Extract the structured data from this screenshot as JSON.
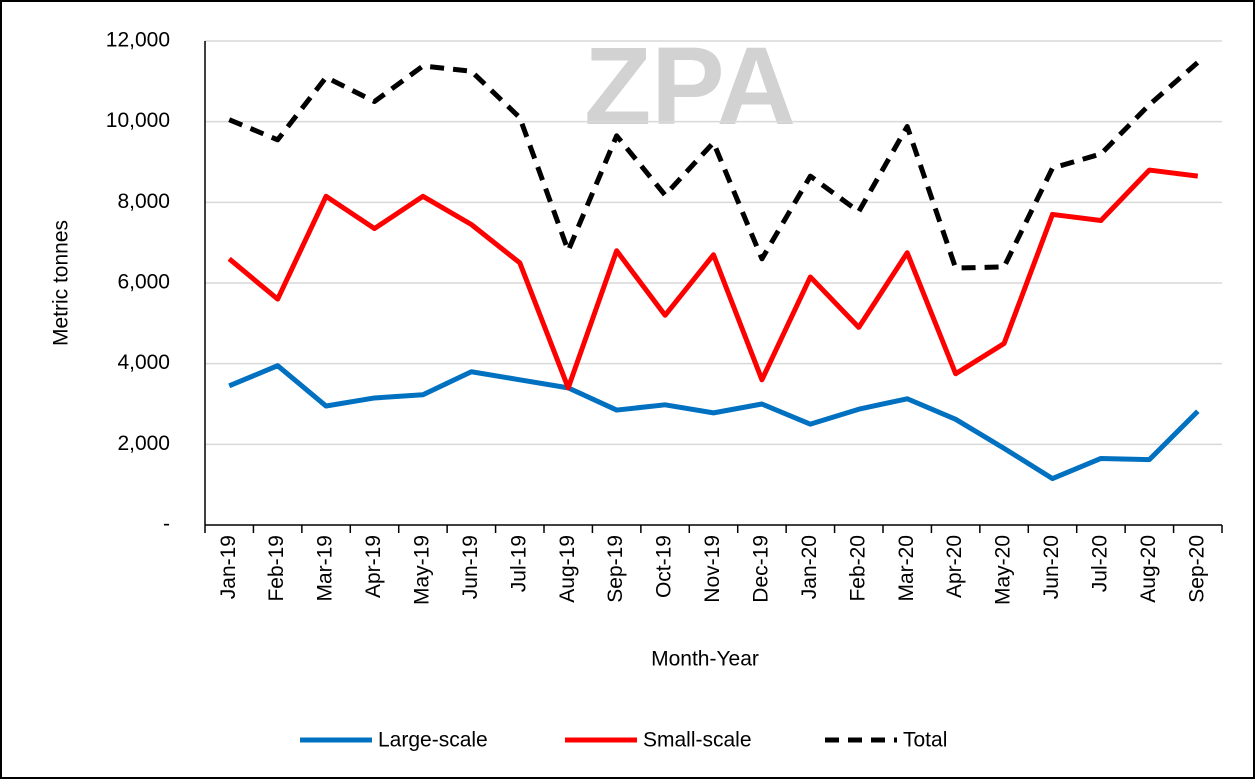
{
  "chart_data": {
    "type": "line",
    "watermark": "ZPA",
    "x_label": "Month-Year",
    "y_label": "Metric tonnes",
    "categories": [
      "Jan-19",
      "Feb-19",
      "Mar-19",
      "Apr-19",
      "May-19",
      "Jun-19",
      "Jul-19",
      "Aug-19",
      "Sep-19",
      "Oct-19",
      "Nov-19",
      "Dec-19",
      "Jan-20",
      "Feb-20",
      "Mar-20",
      "Apr-20",
      "May-20",
      "Jun-20",
      "Jul-20",
      "Aug-20",
      "Sep-20"
    ],
    "series": [
      {
        "name": "Large-scale",
        "color": "#0070c0",
        "dashed": false,
        "values": [
          3450,
          3950,
          2950,
          3150,
          3230,
          3800,
          3600,
          3400,
          2850,
          2980,
          2780,
          3000,
          2500,
          2870,
          3130,
          2620,
          1900,
          1150,
          1650,
          1620,
          2820
        ]
      },
      {
        "name": "Small-scale",
        "color": "#ff0000",
        "dashed": false,
        "values": [
          6600,
          5600,
          8150,
          7350,
          8150,
          7450,
          6500,
          3400,
          6800,
          5200,
          6700,
          3600,
          6150,
          4900,
          6750,
          3750,
          4500,
          7700,
          7550,
          8800,
          8650
        ]
      },
      {
        "name": "Total",
        "color": "#000000",
        "dashed": true,
        "values": [
          10050,
          9550,
          11100,
          10500,
          11380,
          11250,
          10100,
          6800,
          9650,
          8180,
          9480,
          6600,
          8650,
          7770,
          9880,
          6370,
          6400,
          8850,
          9200,
          10420,
          11470
        ]
      }
    ],
    "ylim": [
      0,
      12000
    ],
    "yticks": [
      {
        "value": 0,
        "label": "-"
      },
      {
        "value": 2000,
        "label": "2,000"
      },
      {
        "value": 4000,
        "label": "4,000"
      },
      {
        "value": 6000,
        "label": "6,000"
      },
      {
        "value": 8000,
        "label": "8,000"
      },
      {
        "value": 10000,
        "label": "10,000"
      },
      {
        "value": 12000,
        "label": "12,000"
      }
    ],
    "grid": true,
    "legend": "bottom"
  }
}
